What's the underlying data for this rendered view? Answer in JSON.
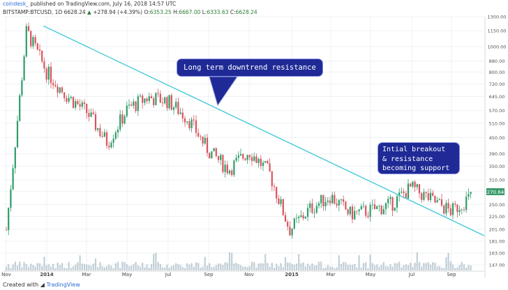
{
  "header": {
    "brand": "coindesk_",
    "published": "published on TradingView.com, July 16, 2018 14:57 UTC"
  },
  "infobar": {
    "symbol": "BITSTAMP:BTCUSD, 1D",
    "last": "6628.24",
    "change": "+278.94 (+4.39%)",
    "o_label": "O:",
    "o": "6353.25",
    "h_label": "H:",
    "h": "6667.00",
    "l_label": "L:",
    "l": "6333.63",
    "c_label": "C:",
    "c": "6628.24"
  },
  "annotations": {
    "downtrend": "Long term downtrend resistance",
    "breakout": [
      "Intial breakout",
      "& resistance",
      "becoming support"
    ]
  },
  "footer": {
    "created_with": "Created with",
    "tradingview": "TradingView"
  },
  "colors": {
    "up": "#2e9c6a",
    "down": "#d9545c",
    "trendline": "#3cc9d6",
    "callout_bg": "#1f2a96",
    "price_label_bg": "#3a9a6a",
    "volume": "#8fa7b7"
  },
  "chart_data": {
    "type": "candlestick",
    "symbol": "BITSTAMP:BTCUSD",
    "interval": "1D",
    "scale": "log",
    "ylim": [
      140,
      1300
    ],
    "y_ticks": [
      1300.0,
      1150.0,
      1000.0,
      880.0,
      800.0,
      720.0,
      645.0,
      570.0,
      510.0,
      450.0,
      390.0,
      350.0,
      310.0,
      280.0,
      250.0,
      225.0,
      201.0,
      181.0,
      163.0,
      147.0
    ],
    "last_price_label": "270.64",
    "x_ticks": [
      "Nov",
      "2014",
      "Mar",
      "May",
      "Jul",
      "Sep",
      "Nov",
      "2015",
      "Mar",
      "May",
      "Jul",
      "Sep"
    ],
    "price_path": [
      {
        "month": "Nov 2013",
        "price": 200
      },
      {
        "month": "Dec 2013",
        "price": 1150
      },
      {
        "month": "2014",
        "price": 800
      },
      {
        "month": "Feb 2014",
        "price": 650
      },
      {
        "month": "Mar 2014",
        "price": 560
      },
      {
        "month": "Apr 2014",
        "price": 430
      },
      {
        "month": "May 2014",
        "price": 580
      },
      {
        "month": "Jun 2014",
        "price": 640
      },
      {
        "month": "Jul 2014",
        "price": 620
      },
      {
        "month": "Aug 2014",
        "price": 530
      },
      {
        "month": "Sep 2014",
        "price": 400
      },
      {
        "month": "Oct 2014",
        "price": 340
      },
      {
        "month": "Nov 2014",
        "price": 400
      },
      {
        "month": "Dec 2014",
        "price": 330
      },
      {
        "month": "2015",
        "price": 200
      },
      {
        "month": "Feb 2015",
        "price": 240
      },
      {
        "month": "Mar 2015",
        "price": 270
      },
      {
        "month": "Apr 2015",
        "price": 230
      },
      {
        "month": "May 2015",
        "price": 237
      },
      {
        "month": "Jun 2015",
        "price": 250
      },
      {
        "month": "Jul 2015",
        "price": 290
      },
      {
        "month": "Aug 2015",
        "price": 260
      },
      {
        "month": "Sep 2015",
        "price": 235
      },
      {
        "month": "Oct 2015",
        "price": 270
      }
    ],
    "trendline": {
      "start": {
        "month": "Dec 2013",
        "price": 1200
      },
      "end": {
        "month": "Oct 2015",
        "price": 190
      }
    }
  }
}
